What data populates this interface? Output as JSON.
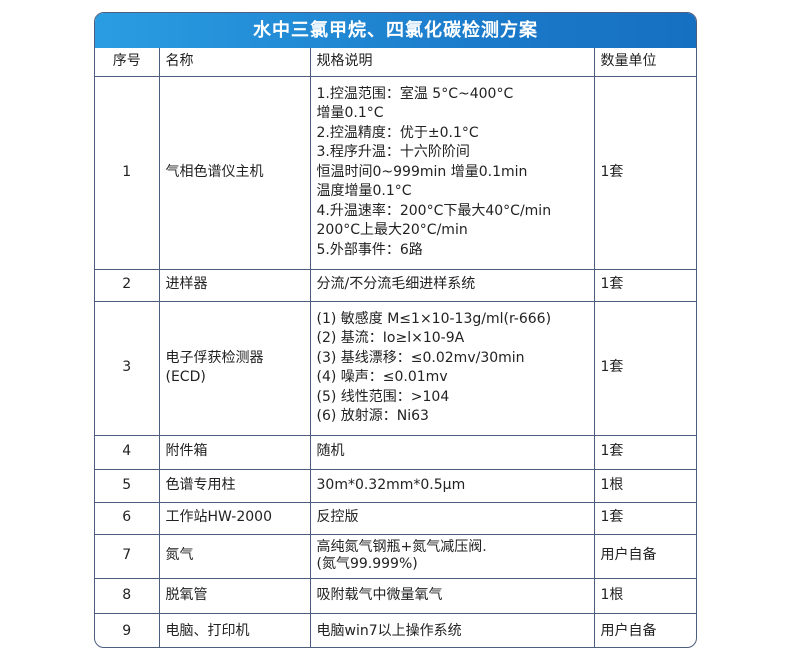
{
  "title": "水中三氯甲烷、四氯化碳检测方案",
  "header": {
    "no": "序号",
    "name": "名称",
    "spec": "规格说明",
    "qty": "数量单位"
  },
  "rows": [
    {
      "no": "1",
      "name": "气相色谱仪主机",
      "spec": "1.控温范围：室温 5°C~400°C\n增量0.1°C\n2.控温精度：优于±0.1°C\n3.程序升温：十六阶阶间\n恒温时间0~999min 增量0.1min\n温度增量0.1°C\n4.升温速率：200°C下最大40°C/min\n200°C上最大20°C/min\n5.外部事件：6路",
      "qty": "1套"
    },
    {
      "no": "2",
      "name": "进样器",
      "spec": "分流/不分流毛细进样系统",
      "qty": "1套"
    },
    {
      "no": "3",
      "name": "电子俘获检测器\n(ECD)",
      "spec": "(1) 敏感度 M≤1×10-13g/ml(r-666)\n(2) 基流：Io≥l×10-9A\n(3) 基线漂移：≤0.02mv/30min\n(4) 噪声：≤0.01mv\n(5) 线性范围：>104\n(6) 放射源：Ni63",
      "qty": "1套"
    },
    {
      "no": "4",
      "name": "附件箱",
      "spec": "随机",
      "qty": "1套"
    },
    {
      "no": "5",
      "name": "色谱专用柱",
      "spec": "30m*0.32mm*0.5μm",
      "qty": "1根"
    },
    {
      "no": "6",
      "name": "工作站HW-2000",
      "spec": "反控版",
      "qty": "1套"
    },
    {
      "no": "7",
      "name": "氮气",
      "spec": "高纯氮气钢瓶+氮气减压阀.\n(氮气99.999%)",
      "qty": "用户自备"
    },
    {
      "no": "8",
      "name": "脱氧管",
      "spec": "吸附载气中微量氧气",
      "qty": "1根"
    },
    {
      "no": "9",
      "name": "电脑、打印机",
      "spec": "电脑win7以上操作系统",
      "qty": "用户自备"
    }
  ]
}
